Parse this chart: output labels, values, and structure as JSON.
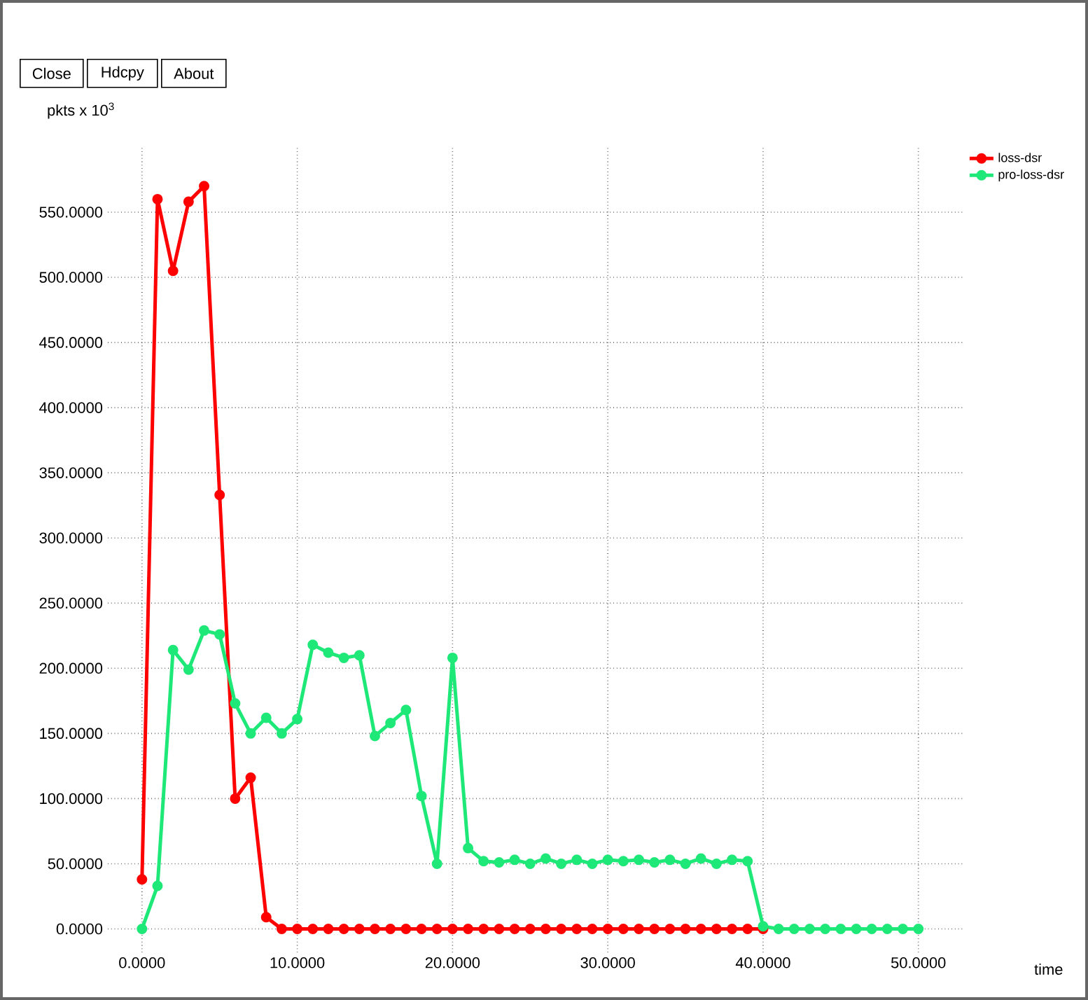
{
  "chart_data": {
    "type": "line",
    "xlabel": "time",
    "ylabel": "pkts x 10$^{3}$",
    "annotations": [
      "Close",
      "Hdcpy",
      "About"
    ],
    "x": [
      0,
      1,
      2,
      3,
      4,
      5,
      6,
      7,
      8,
      9,
      10,
      11,
      12,
      13,
      14,
      15,
      16,
      17,
      18,
      19,
      20,
      21,
      22,
      23,
      24,
      25,
      26,
      27,
      28,
      29,
      30,
      31,
      32,
      33,
      34,
      35,
      36,
      37,
      38,
      39,
      40,
      41,
      42,
      43,
      44,
      45,
      46,
      47,
      48,
      49,
      50
    ],
    "series": [
      {
        "name": "loss-dsr",
        "color": "#ff0000",
        "values": [
          38,
          560,
          505,
          558,
          570,
          333,
          100,
          116,
          9,
          0,
          0,
          0,
          0,
          0,
          0,
          0,
          0,
          0,
          0,
          0,
          0,
          0,
          0,
          0,
          0,
          0,
          0,
          0,
          0,
          0,
          0,
          0,
          0,
          0,
          0,
          0,
          0,
          0,
          0,
          0,
          0,
          null,
          null,
          null,
          null,
          null,
          null,
          null,
          null,
          null,
          null
        ]
      },
      {
        "name": "pro-loss-dsr",
        "color": "#1ee878",
        "values": [
          0,
          33,
          214,
          199,
          229,
          226,
          173,
          150,
          162,
          150,
          161,
          218,
          212,
          208,
          210,
          148,
          158,
          168,
          102,
          50,
          208,
          62,
          52,
          51,
          53,
          50,
          54,
          50,
          53,
          50,
          53,
          52,
          53,
          51,
          53,
          50,
          54,
          50,
          53,
          52,
          2,
          0,
          0,
          0,
          0,
          0,
          0,
          0,
          0,
          0,
          0
        ]
      }
    ],
    "xlim": [
      -2.2,
      52.9
    ],
    "ylim": [
      -18,
      600
    ],
    "xticks": [
      {
        "value": 0,
        "label": "0.0000"
      },
      {
        "value": 10,
        "label": "10.0000"
      },
      {
        "value": 20,
        "label": "20.0000"
      },
      {
        "value": 30,
        "label": "30.0000"
      },
      {
        "value": 40,
        "label": "40.0000"
      },
      {
        "value": 50,
        "label": "50.0000"
      }
    ],
    "yticks": [
      {
        "value": 0,
        "label": "0.0000"
      },
      {
        "value": 50,
        "label": "50.0000"
      },
      {
        "value": 100,
        "label": "100.0000"
      },
      {
        "value": 150,
        "label": "150.0000"
      },
      {
        "value": 200,
        "label": "200.0000"
      },
      {
        "value": 250,
        "label": "250.0000"
      },
      {
        "value": 300,
        "label": "300.0000"
      },
      {
        "value": 350,
        "label": "350.0000"
      },
      {
        "value": 400,
        "label": "400.0000"
      },
      {
        "value": 450,
        "label": "450.0000"
      },
      {
        "value": 500,
        "label": "500.0000"
      },
      {
        "value": 550,
        "label": "550.0000"
      }
    ],
    "grid": true,
    "legend": "top right",
    "marker": "circle",
    "line_style": "solid"
  }
}
